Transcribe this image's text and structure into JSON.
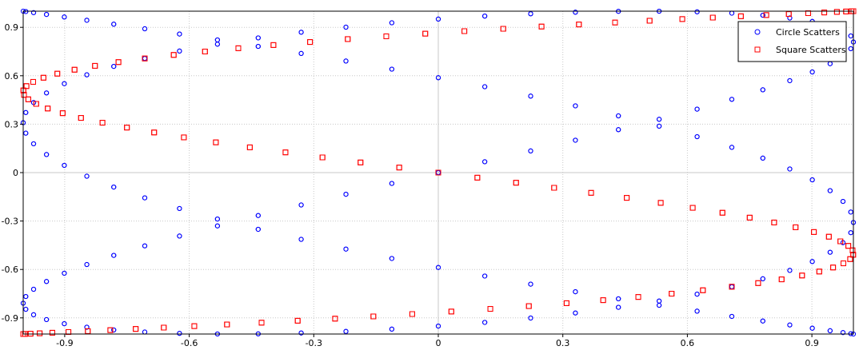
{
  "chart_data": {
    "type": "scatter",
    "title": "",
    "xlabel": "",
    "ylabel": "",
    "xlim": [
      -1,
      1
    ],
    "ylim": [
      -1,
      1
    ],
    "grid": true,
    "legend_position": "top-right",
    "x_ticks": [
      -0.9,
      -0.6,
      -0.3,
      0,
      0.3,
      0.6,
      0.9
    ],
    "x_tick_labels": [
      "-0.9",
      "-0.6",
      "-0.3",
      "0",
      "0.3",
      "0.6",
      "0.9"
    ],
    "y_ticks": [
      -0.9,
      -0.6,
      -0.3,
      0,
      0.3,
      0.6,
      0.9
    ],
    "y_tick_labels": [
      "-0.9",
      "-0.6",
      "-0.3",
      "0",
      "0.3",
      "0.6",
      "0.9"
    ],
    "legend": [
      {
        "label": "Circle Scatters",
        "marker": "circle",
        "color": "#0000ff"
      },
      {
        "label": "Square Scatters",
        "marker": "square",
        "color": "#ff0000"
      }
    ],
    "series": [
      {
        "name": "Circle Scatters",
        "marker": "circle",
        "color": "#0000ff",
        "formula": "x = sin(5t), y = sin(3t)",
        "t_range": [
          0,
          6.2832
        ],
        "point_count": 280
      },
      {
        "name": "Square Scatters",
        "marker": "square",
        "color": "#ff0000",
        "formula": "x = cos(3t), y = cos(t)",
        "t_range": [
          0,
          6.2832
        ],
        "point_count": 200
      }
    ]
  }
}
